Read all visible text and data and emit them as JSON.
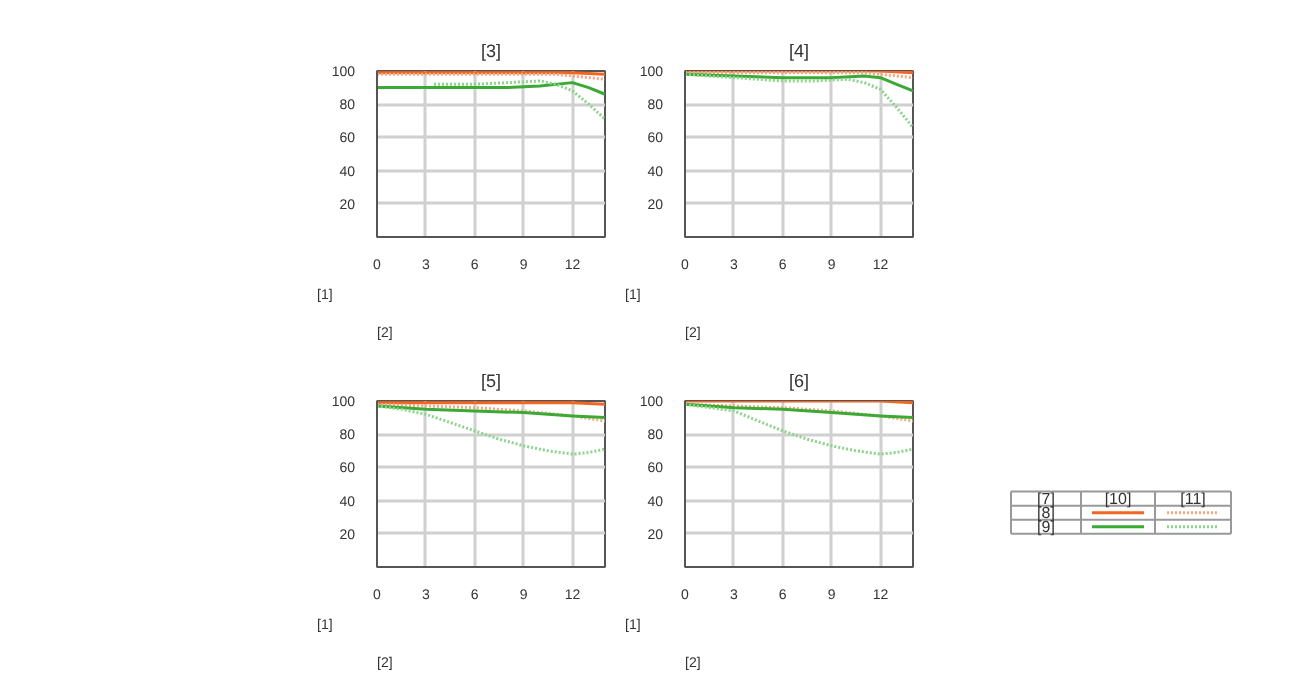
{
  "chart_data": [
    {
      "type": "line",
      "title": "[3]",
      "xlabel": "[2]",
      "ylabel": "[1]",
      "xlim": [
        0,
        14
      ],
      "ylim": [
        0,
        100
      ],
      "xticks": [
        0,
        3,
        6,
        9,
        12
      ],
      "yticks": [
        20,
        40,
        60,
        80,
        100
      ],
      "grid": true,
      "series": [
        {
          "color": "#f26522",
          "line_style": "solid",
          "x": [
            0,
            3,
            6,
            9,
            12,
            14
          ],
          "values": [
            99,
            99,
            99,
            99,
            99,
            98
          ]
        },
        {
          "color": "#f7a782",
          "line_style": "dotted",
          "x": [
            0,
            3,
            6,
            9,
            11,
            12,
            13,
            14
          ],
          "values": [
            98,
            98,
            98,
            98,
            98,
            97,
            96,
            95
          ]
        },
        {
          "color": "#3aaa35",
          "line_style": "solid",
          "x": [
            0,
            3,
            6,
            8,
            10,
            12,
            13,
            14
          ],
          "values": [
            90,
            90,
            90,
            90,
            91,
            93,
            90,
            86
          ]
        },
        {
          "color": "#8cd48a",
          "line_style": "dotted",
          "x": [
            3.5,
            6,
            8,
            10,
            11,
            12,
            13,
            14
          ],
          "values": [
            92,
            92,
            93,
            94,
            92,
            88,
            80,
            71
          ]
        }
      ]
    },
    {
      "type": "line",
      "title": "[4]",
      "xlabel": "[2]",
      "ylabel": "[1]",
      "xlim": [
        0,
        14
      ],
      "ylim": [
        0,
        100
      ],
      "xticks": [
        0,
        3,
        6,
        9,
        12
      ],
      "yticks": [
        20,
        40,
        60,
        80,
        100
      ],
      "grid": true,
      "series": [
        {
          "color": "#f26522",
          "line_style": "solid",
          "x": [
            0,
            3,
            6,
            9,
            12,
            14
          ],
          "values": [
            100,
            100,
            100,
            100,
            100,
            99
          ]
        },
        {
          "color": "#f7a782",
          "line_style": "dotted",
          "x": [
            0,
            3,
            6,
            9,
            11,
            12,
            13,
            14
          ],
          "values": [
            99,
            99,
            99,
            99,
            99,
            98,
            97,
            96
          ]
        },
        {
          "color": "#3aaa35",
          "line_style": "solid",
          "x": [
            0,
            3,
            6,
            9,
            11,
            12,
            13,
            14
          ],
          "values": [
            98,
            97,
            96,
            96,
            97,
            96,
            92,
            88
          ]
        },
        {
          "color": "#8cd48a",
          "line_style": "dotted",
          "x": [
            0,
            3,
            6,
            8,
            10,
            11,
            12,
            13,
            14
          ],
          "values": [
            98,
            96,
            94,
            94,
            95,
            93,
            89,
            78,
            66
          ]
        }
      ]
    },
    {
      "type": "line",
      "title": "[5]",
      "xlabel": "[2]",
      "ylabel": "[1]",
      "xlim": [
        0,
        14
      ],
      "ylim": [
        0,
        100
      ],
      "xticks": [
        0,
        3,
        6,
        9,
        12
      ],
      "yticks": [
        20,
        40,
        60,
        80,
        100
      ],
      "grid": true,
      "series": [
        {
          "color": "#f26522",
          "line_style": "solid",
          "x": [
            0,
            3,
            6,
            9,
            12,
            14
          ],
          "values": [
            99,
            99,
            99,
            99,
            99,
            98
          ]
        },
        {
          "color": "#f7a782",
          "line_style": "dotted",
          "x": [
            0,
            3,
            6,
            9,
            12,
            14
          ],
          "values": [
            98,
            97,
            96,
            94,
            91,
            88
          ]
        },
        {
          "color": "#3aaa35",
          "line_style": "solid",
          "x": [
            0,
            3,
            6,
            9,
            12,
            14
          ],
          "values": [
            97,
            95,
            94,
            93,
            91,
            90
          ]
        },
        {
          "color": "#8cd48a",
          "line_style": "dotted",
          "x": [
            0,
            1.5,
            3,
            4.5,
            6,
            7.5,
            9,
            10.5,
            12,
            13,
            14
          ],
          "values": [
            97,
            95,
            92,
            87,
            82,
            77,
            73,
            70,
            68,
            69,
            71
          ]
        }
      ]
    },
    {
      "type": "line",
      "title": "[6]",
      "xlabel": "[2]",
      "ylabel": "[1]",
      "xlim": [
        0,
        14
      ],
      "ylim": [
        0,
        100
      ],
      "xticks": [
        0,
        3,
        6,
        9,
        12
      ],
      "yticks": [
        20,
        40,
        60,
        80,
        100
      ],
      "grid": true,
      "series": [
        {
          "color": "#f26522",
          "line_style": "solid",
          "x": [
            0,
            3,
            6,
            9,
            12,
            14
          ],
          "values": [
            100,
            100,
            100,
            100,
            100,
            99
          ]
        },
        {
          "color": "#f7a782",
          "line_style": "dotted",
          "x": [
            0,
            3,
            6,
            9,
            12,
            14
          ],
          "values": [
            98,
            97,
            96,
            94,
            91,
            88
          ]
        },
        {
          "color": "#3aaa35",
          "line_style": "solid",
          "x": [
            0,
            3,
            6,
            9,
            12,
            14
          ],
          "values": [
            98,
            96,
            95,
            93,
            91,
            90
          ]
        },
        {
          "color": "#8cd48a",
          "line_style": "dotted",
          "x": [
            0,
            1.5,
            3,
            4.5,
            6,
            7.5,
            9,
            10.5,
            12,
            13,
            14
          ],
          "values": [
            98,
            96,
            94,
            88,
            82,
            77,
            73,
            70,
            68,
            69,
            71
          ]
        }
      ]
    },
    {
      "type": "other",
      "annotations": [
        "[7]",
        "[10]",
        "[11]",
        "[8]",
        "[9]"
      ]
    }
  ]
}
